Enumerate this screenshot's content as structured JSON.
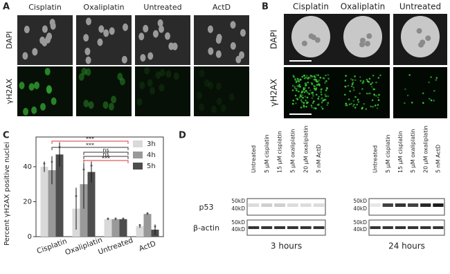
{
  "panel_a": {
    "label": "A",
    "columns": [
      "Cisplatin",
      "Oxaliplatin",
      "Untreated",
      "ActD"
    ],
    "rows": [
      "DAPI",
      "γH2AX"
    ]
  },
  "panel_b": {
    "label": "B",
    "columns": [
      "Cisplatin",
      "Oxaliplatin",
      "Untreated"
    ],
    "rows": [
      "DAPI",
      "γH2AX"
    ]
  },
  "panel_c": {
    "label": "C"
  },
  "chart_data": {
    "type": "bar",
    "y_label": "Percent γH2AX positive nuclei",
    "categories": [
      "Cisplatin",
      "Oxaliplatin",
      "Untreated",
      "ActD"
    ],
    "series": [
      {
        "name": "3h",
        "color": "#d9d9d9",
        "values": [
          40,
          16,
          10,
          6
        ],
        "errors": [
          3,
          12,
          0.5,
          1
        ]
      },
      {
        "name": "4h",
        "color": "#999999",
        "values": [
          38,
          30,
          10,
          13
        ],
        "errors": [
          8,
          14,
          0.5,
          0.5
        ]
      },
      {
        "name": "5h",
        "color": "#4d4d4d",
        "values": [
          47,
          37,
          10,
          4
        ],
        "errors": [
          7,
          6,
          0.5,
          3
        ]
      }
    ],
    "ylim": [
      0,
      57
    ],
    "yticks": [
      0,
      20,
      40
    ],
    "legend": "upper right",
    "annotations": [
      "***",
      "***",
      "ns",
      "ns",
      "***"
    ]
  },
  "panel_d": {
    "label": "D",
    "lanes": [
      "Untreated",
      "5 µM cisplatin",
      "15 µM cisplatin",
      "5 µM oxaliplatin",
      "20 µM oxaliplatin",
      "5 nM ActD"
    ],
    "markers": [
      "50kD",
      "40kD"
    ],
    "proteins": [
      "p53",
      "β-actin"
    ],
    "times": [
      "3 hours",
      "24 hours"
    ]
  }
}
